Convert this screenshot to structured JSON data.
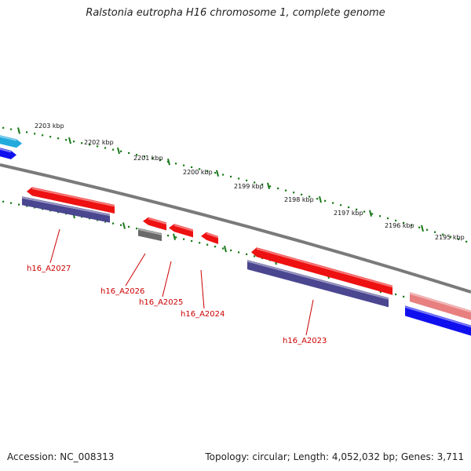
{
  "title": "Ralstonia eutropha H16 chromosome 1, complete genome",
  "footer": {
    "accession": "Accession: NC_008313",
    "summary": "Topology: circular; Length: 4,052,032 bp; Genes: 3,711"
  },
  "colors": {
    "backbone": "#7a7a7a",
    "tick": "#1a7a1a",
    "gene_label": "#cc0000",
    "cds_forward": "#ee1111",
    "gene_feature": "#4a4690",
    "pseudo_feature": "#6a6a6a",
    "neighbor_light": "#e88080",
    "neighbor_blue": "#1010ee",
    "neighbor_cyan": "#22aadd"
  },
  "ruler": {
    "unit": "kbp",
    "labels": [
      {
        "value": 2203,
        "text": "2203 kbp"
      },
      {
        "value": 2202,
        "text": "2202 kbp"
      },
      {
        "value": 2201,
        "text": "2201 kbp"
      },
      {
        "value": 2200,
        "text": "2200 kbp"
      },
      {
        "value": 2199,
        "text": "2199 kbp"
      },
      {
        "value": 2198,
        "text": "2198 kbp"
      },
      {
        "value": 2197,
        "text": "2197 kbp"
      },
      {
        "value": 2196,
        "text": "2196 kbp"
      },
      {
        "value": 2195,
        "text": "2195 kbp"
      }
    ]
  },
  "genes": [
    {
      "id": "h16_A2027",
      "label": "h16_A2027"
    },
    {
      "id": "h16_A2026",
      "label": "h16_A2026"
    },
    {
      "id": "h16_A2025",
      "label": "h16_A2025"
    },
    {
      "id": "h16_A2024",
      "label": "h16_A2024"
    },
    {
      "id": "h16_A2023",
      "label": "h16_A2023"
    }
  ]
}
